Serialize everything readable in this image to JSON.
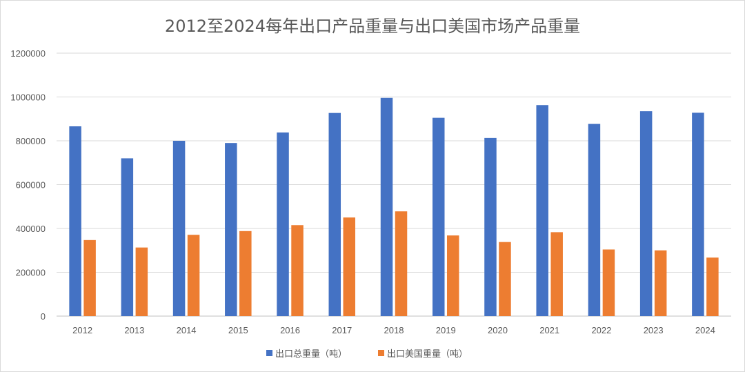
{
  "chart_data": {
    "type": "bar",
    "title": "2012至2024每年出口产品重量与出口美国市场产品重量",
    "categories": [
      "2012",
      "2013",
      "2014",
      "2015",
      "2016",
      "2017",
      "2018",
      "2019",
      "2020",
      "2021",
      "2022",
      "2023",
      "2024"
    ],
    "series": [
      {
        "name": "出口总重量（吨）",
        "color": "#4472c4",
        "values": [
          866000,
          720000,
          800000,
          790000,
          838000,
          927000,
          996000,
          905000,
          813000,
          963000,
          877000,
          935000,
          928000
        ]
      },
      {
        "name": "出口美国重量（吨）",
        "color": "#ed7d31",
        "values": [
          347000,
          313000,
          371000,
          388000,
          415000,
          450000,
          478000,
          368000,
          338000,
          383000,
          304000,
          300000,
          267000
        ]
      }
    ],
    "ylim": [
      0,
      1200000
    ],
    "yticks": [
      0,
      200000,
      400000,
      600000,
      800000,
      1000000,
      1200000
    ],
    "ytick_labels": [
      "0",
      "200000",
      "400000",
      "600000",
      "800000",
      "1000000",
      "1200000"
    ],
    "grid": true,
    "legend_position": "bottom"
  }
}
